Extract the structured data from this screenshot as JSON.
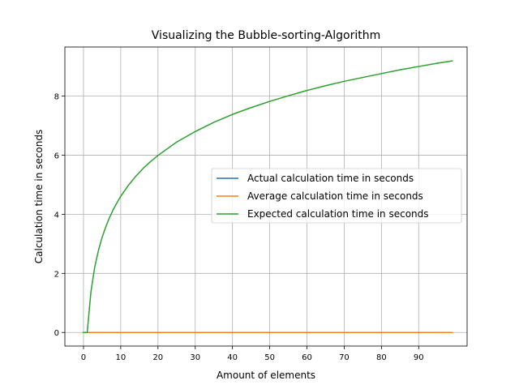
{
  "chart_data": {
    "type": "line",
    "title": "Visualizing the Bubble-sorting-Algorithm",
    "xlabel": "Amount of elements",
    "ylabel": "Calculation time in seconds",
    "xlim": [
      -5,
      103
    ],
    "ylim": [
      -0.46,
      9.66
    ],
    "xticks": [
      0,
      10,
      20,
      30,
      40,
      50,
      60,
      70,
      80,
      90
    ],
    "yticks": [
      0,
      2,
      4,
      6,
      8
    ],
    "grid": true,
    "legend_position": "center-right",
    "series": [
      {
        "name": "Actual calculation time in seconds",
        "color": "#1f77b4",
        "x": [
          0,
          99
        ],
        "y": [
          0,
          0
        ]
      },
      {
        "name": "Average calculation time in seconds",
        "color": "#ff7f0e",
        "x": [
          0,
          99
        ],
        "y": [
          0,
          0
        ]
      },
      {
        "name": "Expected calculation time in seconds",
        "color": "#2ca02c",
        "x": [
          0,
          1,
          2,
          3,
          4,
          5,
          6,
          7,
          8,
          9,
          10,
          12,
          14,
          16,
          18,
          20,
          25,
          30,
          35,
          40,
          45,
          50,
          55,
          60,
          65,
          70,
          75,
          80,
          85,
          90,
          95,
          99
        ],
        "y": [
          0,
          0,
          1.38,
          2.2,
          2.77,
          3.22,
          3.58,
          3.89,
          4.16,
          4.39,
          4.61,
          4.97,
          5.28,
          5.55,
          5.78,
          5.99,
          6.44,
          6.8,
          7.11,
          7.38,
          7.61,
          7.82,
          8.01,
          8.19,
          8.35,
          8.5,
          8.63,
          8.76,
          8.89,
          9.0,
          9.11,
          9.19
        ]
      }
    ]
  }
}
